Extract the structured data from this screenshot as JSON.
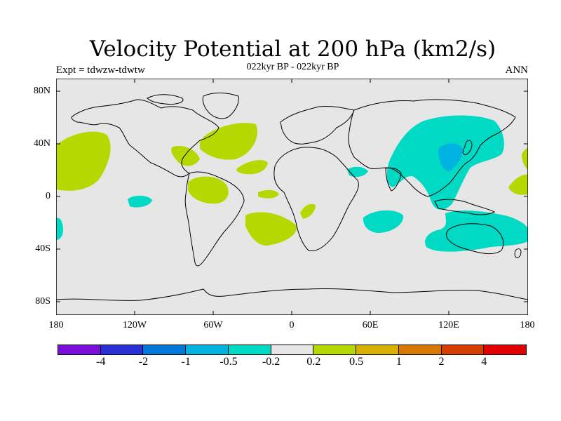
{
  "header": {
    "title": "Velocity Potential at 200 hPa (km2/s)",
    "subtitle": "022kyr BP - 022kyr BP",
    "left_label": "Expt = tdwzw-tdwtw",
    "right_label": "ANN"
  },
  "map": {
    "y_ticks": [
      "80N",
      "40N",
      "0",
      "40S",
      "80S"
    ],
    "x_ticks": [
      "180",
      "120W",
      "60W",
      "0",
      "60E",
      "120E",
      "180"
    ],
    "background_color": "#e6e6e6",
    "coastline_color": "#000000"
  },
  "colorbar": {
    "colors": [
      "#7a0fd9",
      "#2831d6",
      "#0078d7",
      "#00b3e0",
      "#00d9c4",
      "#e6e6e6",
      "#b5d800",
      "#d8b100",
      "#d87800",
      "#d83d00",
      "#e00000"
    ],
    "labels": [
      "-4",
      "-2",
      "-1",
      "-0.5",
      "-0.2",
      "0.2",
      "0.5",
      "1",
      "2",
      "4"
    ]
  }
}
